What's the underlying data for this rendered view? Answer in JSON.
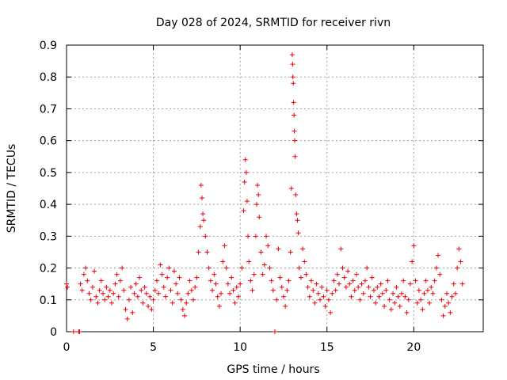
{
  "chart_data": {
    "type": "scatter",
    "title": "Day 028 of 2024, SRMTID for receiver rivn",
    "xlabel": "GPS time / hours",
    "ylabel": "SRMTID / TECUs",
    "xlim": [
      0,
      24
    ],
    "ylim": [
      0,
      0.9
    ],
    "xticks": [
      0,
      5,
      10,
      15,
      20
    ],
    "xtick_labels": [
      "0",
      "5",
      "10",
      "15",
      "20"
    ],
    "yticks": [
      0,
      0.1,
      0.2,
      0.3,
      0.4,
      0.5,
      0.6,
      0.7,
      0.8,
      0.9
    ],
    "ytick_labels": [
      "0",
      "0.1",
      "0.2",
      "0.3",
      "0.4",
      "0.5",
      "0.6",
      "0.7",
      "0.8",
      "0.9"
    ],
    "grid": true,
    "marker": "+",
    "color": "#e8000b",
    "series": [
      {
        "name": "SRMTID",
        "points": [
          [
            0.0,
            0.15
          ],
          [
            0.05,
            0.14
          ],
          [
            0.4,
            0.0
          ],
          [
            0.7,
            0.0
          ],
          [
            0.75,
            0.0
          ],
          [
            0.8,
            0.15
          ],
          [
            0.9,
            0.13
          ],
          [
            1.0,
            0.18
          ],
          [
            1.1,
            0.2
          ],
          [
            1.2,
            0.16
          ],
          [
            1.3,
            0.12
          ],
          [
            1.4,
            0.1
          ],
          [
            1.5,
            0.14
          ],
          [
            1.6,
            0.19
          ],
          [
            1.7,
            0.11
          ],
          [
            1.8,
            0.09
          ],
          [
            1.9,
            0.13
          ],
          [
            2.0,
            0.16
          ],
          [
            2.1,
            0.12
          ],
          [
            2.2,
            0.1
          ],
          [
            2.3,
            0.14
          ],
          [
            2.4,
            0.11
          ],
          [
            2.5,
            0.13
          ],
          [
            2.6,
            0.09
          ],
          [
            2.7,
            0.12
          ],
          [
            2.8,
            0.15
          ],
          [
            2.9,
            0.18
          ],
          [
            3.0,
            0.11
          ],
          [
            3.1,
            0.16
          ],
          [
            3.2,
            0.2
          ],
          [
            3.3,
            0.13
          ],
          [
            3.4,
            0.07
          ],
          [
            3.5,
            0.04
          ],
          [
            3.6,
            0.1
          ],
          [
            3.7,
            0.14
          ],
          [
            3.8,
            0.06
          ],
          [
            3.9,
            0.12
          ],
          [
            4.0,
            0.15
          ],
          [
            4.1,
            0.11
          ],
          [
            4.2,
            0.17
          ],
          [
            4.3,
            0.13
          ],
          [
            4.4,
            0.09
          ],
          [
            4.5,
            0.14
          ],
          [
            4.6,
            0.12
          ],
          [
            4.7,
            0.08
          ],
          [
            4.8,
            0.11
          ],
          [
            4.9,
            0.07
          ],
          [
            5.0,
            0.1
          ],
          [
            5.1,
            0.13
          ],
          [
            5.2,
            0.16
          ],
          [
            5.3,
            0.12
          ],
          [
            5.4,
            0.21
          ],
          [
            5.5,
            0.18
          ],
          [
            5.6,
            0.14
          ],
          [
            5.7,
            0.11
          ],
          [
            5.8,
            0.17
          ],
          [
            5.9,
            0.2
          ],
          [
            6.0,
            0.13
          ],
          [
            6.1,
            0.09
          ],
          [
            6.2,
            0.19
          ],
          [
            6.3,
            0.15
          ],
          [
            6.4,
            0.12
          ],
          [
            6.5,
            0.17
          ],
          [
            6.6,
            0.1
          ],
          [
            6.7,
            0.07
          ],
          [
            6.8,
            0.05
          ],
          [
            6.9,
            0.09
          ],
          [
            7.0,
            0.12
          ],
          [
            7.1,
            0.16
          ],
          [
            7.2,
            0.13
          ],
          [
            7.3,
            0.1
          ],
          [
            7.4,
            0.14
          ],
          [
            7.5,
            0.17
          ],
          [
            7.6,
            0.25
          ],
          [
            7.7,
            0.33
          ],
          [
            7.75,
            0.46
          ],
          [
            7.8,
            0.42
          ],
          [
            7.85,
            0.37
          ],
          [
            7.9,
            0.35
          ],
          [
            8.0,
            0.3
          ],
          [
            8.1,
            0.25
          ],
          [
            8.2,
            0.2
          ],
          [
            8.3,
            0.16
          ],
          [
            8.4,
            0.13
          ],
          [
            8.5,
            0.18
          ],
          [
            8.6,
            0.15
          ],
          [
            8.7,
            0.11
          ],
          [
            8.8,
            0.08
          ],
          [
            8.9,
            0.12
          ],
          [
            9.0,
            0.22
          ],
          [
            9.1,
            0.27
          ],
          [
            9.2,
            0.2
          ],
          [
            9.3,
            0.15
          ],
          [
            9.4,
            0.12
          ],
          [
            9.5,
            0.17
          ],
          [
            9.6,
            0.13
          ],
          [
            9.7,
            0.09
          ],
          [
            9.8,
            0.14
          ],
          [
            9.9,
            0.11
          ],
          [
            10.0,
            0.15
          ],
          [
            10.1,
            0.2
          ],
          [
            10.2,
            0.38
          ],
          [
            10.25,
            0.47
          ],
          [
            10.3,
            0.54
          ],
          [
            10.35,
            0.5
          ],
          [
            10.4,
            0.41
          ],
          [
            10.45,
            0.3
          ],
          [
            10.5,
            0.22
          ],
          [
            10.6,
            0.16
          ],
          [
            10.7,
            0.13
          ],
          [
            10.8,
            0.18
          ],
          [
            10.9,
            0.3
          ],
          [
            10.95,
            0.4
          ],
          [
            11.0,
            0.46
          ],
          [
            11.05,
            0.43
          ],
          [
            11.1,
            0.36
          ],
          [
            11.2,
            0.25
          ],
          [
            11.3,
            0.18
          ],
          [
            11.4,
            0.21
          ],
          [
            11.5,
            0.3
          ],
          [
            11.6,
            0.27
          ],
          [
            11.7,
            0.2
          ],
          [
            11.8,
            0.16
          ],
          [
            11.9,
            0.13
          ],
          [
            12.0,
            0.0
          ],
          [
            12.1,
            0.1
          ],
          [
            12.2,
            0.26
          ],
          [
            12.3,
            0.17
          ],
          [
            12.4,
            0.14
          ],
          [
            12.5,
            0.11
          ],
          [
            12.6,
            0.08
          ],
          [
            12.7,
            0.13
          ],
          [
            12.8,
            0.16
          ],
          [
            12.9,
            0.25
          ],
          [
            12.95,
            0.45
          ],
          [
            13.0,
            0.87
          ],
          [
            13.02,
            0.84
          ],
          [
            13.04,
            0.8
          ],
          [
            13.06,
            0.78
          ],
          [
            13.08,
            0.72
          ],
          [
            13.1,
            0.68
          ],
          [
            13.12,
            0.63
          ],
          [
            13.14,
            0.6
          ],
          [
            13.16,
            0.55
          ],
          [
            13.2,
            0.43
          ],
          [
            13.25,
            0.37
          ],
          [
            13.3,
            0.35
          ],
          [
            13.35,
            0.31
          ],
          [
            13.4,
            0.2
          ],
          [
            13.5,
            0.17
          ],
          [
            13.6,
            0.26
          ],
          [
            13.7,
            0.22
          ],
          [
            13.8,
            0.18
          ],
          [
            13.9,
            0.14
          ],
          [
            14.0,
            0.11
          ],
          [
            14.1,
            0.16
          ],
          [
            14.2,
            0.13
          ],
          [
            14.3,
            0.09
          ],
          [
            14.4,
            0.15
          ],
          [
            14.5,
            0.12
          ],
          [
            14.6,
            0.1
          ],
          [
            14.7,
            0.14
          ],
          [
            14.8,
            0.11
          ],
          [
            14.9,
            0.08
          ],
          [
            15.0,
            0.13
          ],
          [
            15.1,
            0.1
          ],
          [
            15.2,
            0.06
          ],
          [
            15.3,
            0.12
          ],
          [
            15.4,
            0.16
          ],
          [
            15.5,
            0.13
          ],
          [
            15.6,
            0.18
          ],
          [
            15.7,
            0.15
          ],
          [
            15.8,
            0.26
          ],
          [
            15.9,
            0.2
          ],
          [
            16.0,
            0.17
          ],
          [
            16.1,
            0.14
          ],
          [
            16.2,
            0.19
          ],
          [
            16.3,
            0.15
          ],
          [
            16.4,
            0.11
          ],
          [
            16.5,
            0.16
          ],
          [
            16.6,
            0.13
          ],
          [
            16.7,
            0.18
          ],
          [
            16.8,
            0.14
          ],
          [
            16.9,
            0.1
          ],
          [
            17.0,
            0.15
          ],
          [
            17.1,
            0.12
          ],
          [
            17.2,
            0.16
          ],
          [
            17.3,
            0.2
          ],
          [
            17.4,
            0.14
          ],
          [
            17.5,
            0.11
          ],
          [
            17.6,
            0.17
          ],
          [
            17.7,
            0.13
          ],
          [
            17.8,
            0.09
          ],
          [
            17.9,
            0.14
          ],
          [
            18.0,
            0.11
          ],
          [
            18.1,
            0.15
          ],
          [
            18.2,
            0.12
          ],
          [
            18.3,
            0.08
          ],
          [
            18.4,
            0.13
          ],
          [
            18.5,
            0.16
          ],
          [
            18.6,
            0.1
          ],
          [
            18.7,
            0.07
          ],
          [
            18.8,
            0.12
          ],
          [
            18.9,
            0.09
          ],
          [
            19.0,
            0.14
          ],
          [
            19.1,
            0.11
          ],
          [
            19.2,
            0.08
          ],
          [
            19.3,
            0.12
          ],
          [
            19.4,
            0.16
          ],
          [
            19.5,
            0.11
          ],
          [
            19.6,
            0.06
          ],
          [
            19.7,
            0.1
          ],
          [
            19.8,
            0.15
          ],
          [
            19.9,
            0.22
          ],
          [
            20.0,
            0.27
          ],
          [
            20.1,
            0.16
          ],
          [
            20.2,
            0.09
          ],
          [
            20.3,
            0.13
          ],
          [
            20.4,
            0.1
          ],
          [
            20.5,
            0.07
          ],
          [
            20.6,
            0.12
          ],
          [
            20.7,
            0.16
          ],
          [
            20.8,
            0.13
          ],
          [
            20.9,
            0.09
          ],
          [
            21.0,
            0.14
          ],
          [
            21.1,
            0.12
          ],
          [
            21.2,
            0.16
          ],
          [
            21.3,
            0.2
          ],
          [
            21.4,
            0.24
          ],
          [
            21.5,
            0.18
          ],
          [
            21.6,
            0.1
          ],
          [
            21.7,
            0.05
          ],
          [
            21.8,
            0.08
          ],
          [
            21.9,
            0.12
          ],
          [
            22.0,
            0.09
          ],
          [
            22.1,
            0.06
          ],
          [
            22.2,
            0.11
          ],
          [
            22.3,
            0.15
          ],
          [
            22.4,
            0.12
          ],
          [
            22.5,
            0.2
          ],
          [
            22.6,
            0.26
          ],
          [
            22.7,
            0.22
          ],
          [
            22.8,
            0.15
          ]
        ]
      }
    ]
  }
}
